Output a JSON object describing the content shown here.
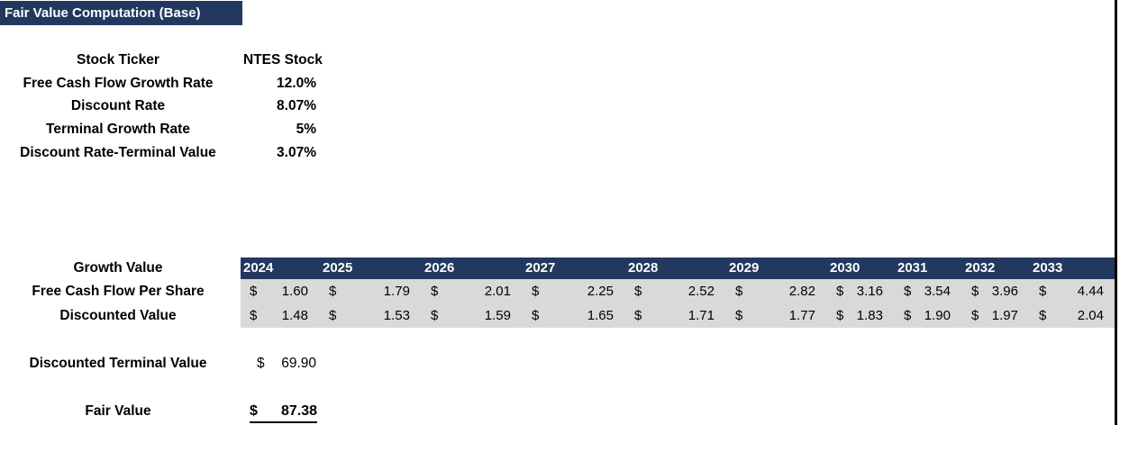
{
  "title": "Fair Value Computation (Base)",
  "colors": {
    "header_navy": "#22385f",
    "row_gray": "#d9d9d9"
  },
  "parameters": [
    {
      "label": "Stock Ticker",
      "value": "NTES Stock"
    },
    {
      "label": "Free Cash Flow Growth Rate",
      "value": "12.0%"
    },
    {
      "label": "Discount Rate",
      "value": "8.07%"
    },
    {
      "label": "Terminal Growth Rate",
      "value": "5%"
    },
    {
      "label": "Discount Rate-Terminal Value",
      "value": "3.07%"
    }
  ],
  "table": {
    "currency_symbol": "$",
    "row_labels": [
      "Growth Value",
      "Free Cash Flow Per Share",
      "Discounted Value"
    ],
    "years": [
      "2024",
      "2025",
      "2026",
      "2027",
      "2028",
      "2029",
      "2030",
      "2031",
      "2032",
      "2033"
    ],
    "free_cash_flow_per_share": [
      "1.60",
      "1.79",
      "2.01",
      "2.25",
      "2.52",
      "2.82",
      "3.16",
      "3.54",
      "3.96",
      "4.44"
    ],
    "discounted_value": [
      "1.48",
      "1.53",
      "1.59",
      "1.65",
      "1.71",
      "1.77",
      "1.83",
      "1.90",
      "1.97",
      "2.04"
    ]
  },
  "summary": {
    "discounted_terminal_value_label": "Discounted Terminal Value",
    "discounted_terminal_value": "69.90",
    "fair_value_label": "Fair Value",
    "fair_value": "87.38"
  }
}
